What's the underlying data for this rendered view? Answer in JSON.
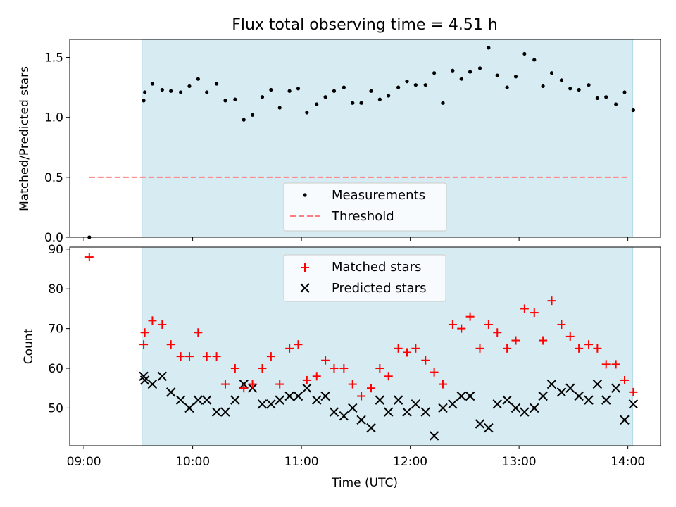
{
  "chart_data": [
    {
      "type": "scatter",
      "title": "Flux total observing time = 4.51 h",
      "xlabel": "",
      "ylabel": "Matched/Predicted stars",
      "xlim": [
        8.87,
        14.3
      ],
      "ylim": [
        0,
        1.65
      ],
      "yticks": [
        0.0,
        0.5,
        1.0,
        1.5
      ],
      "ytick_labels": [
        "0.0",
        "0.5",
        "1.0",
        "1.5"
      ],
      "shaded_span": [
        9.535,
        14.045
      ],
      "shade_color": "#add8e6",
      "legend": [
        "Measurements",
        "Threshold"
      ],
      "legend_position": "lower-center",
      "series": [
        {
          "name": "Measurements",
          "marker": "dot",
          "color": "#000000",
          "points": [
            [
              9.05,
              0.0
            ],
            [
              9.55,
              1.14
            ],
            [
              9.56,
              1.21
            ],
            [
              9.63,
              1.28
            ],
            [
              9.72,
              1.23
            ],
            [
              9.8,
              1.22
            ],
            [
              9.89,
              1.21
            ],
            [
              9.97,
              1.26
            ],
            [
              10.05,
              1.32
            ],
            [
              10.13,
              1.21
            ],
            [
              10.22,
              1.28
            ],
            [
              10.3,
              1.14
            ],
            [
              10.39,
              1.15
            ],
            [
              10.47,
              0.98
            ],
            [
              10.55,
              1.02
            ],
            [
              10.64,
              1.17
            ],
            [
              10.72,
              1.23
            ],
            [
              10.8,
              1.08
            ],
            [
              10.89,
              1.22
            ],
            [
              10.97,
              1.24
            ],
            [
              11.05,
              1.04
            ],
            [
              11.14,
              1.11
            ],
            [
              11.22,
              1.17
            ],
            [
              11.3,
              1.22
            ],
            [
              11.39,
              1.25
            ],
            [
              11.47,
              1.12
            ],
            [
              11.55,
              1.12
            ],
            [
              11.64,
              1.22
            ],
            [
              11.72,
              1.15
            ],
            [
              11.8,
              1.18
            ],
            [
              11.89,
              1.25
            ],
            [
              11.97,
              1.3
            ],
            [
              12.05,
              1.27
            ],
            [
              12.14,
              1.27
            ],
            [
              12.22,
              1.37
            ],
            [
              12.3,
              1.12
            ],
            [
              12.39,
              1.39
            ],
            [
              12.47,
              1.32
            ],
            [
              12.55,
              1.38
            ],
            [
              12.64,
              1.41
            ],
            [
              12.72,
              1.58
            ],
            [
              12.8,
              1.35
            ],
            [
              12.89,
              1.25
            ],
            [
              12.97,
              1.34
            ],
            [
              13.05,
              1.53
            ],
            [
              13.14,
              1.48
            ],
            [
              13.22,
              1.26
            ],
            [
              13.3,
              1.37
            ],
            [
              13.39,
              1.31
            ],
            [
              13.47,
              1.24
            ],
            [
              13.55,
              1.23
            ],
            [
              13.64,
              1.27
            ],
            [
              13.72,
              1.16
            ],
            [
              13.8,
              1.17
            ],
            [
              13.89,
              1.11
            ],
            [
              13.97,
              1.21
            ],
            [
              14.05,
              1.06
            ]
          ]
        },
        {
          "name": "Threshold",
          "style": "dashed",
          "color": "#ff7f7f",
          "x": [
            9.05,
            14.02
          ],
          "y": [
            0.5,
            0.5
          ]
        }
      ]
    },
    {
      "type": "scatter",
      "title": "",
      "xlabel": "Time (UTC)",
      "ylabel": "Count",
      "xlim": [
        8.87,
        14.3
      ],
      "ylim": [
        40.5,
        90.5
      ],
      "xticks": [
        9,
        10,
        11,
        12,
        13,
        14
      ],
      "xtick_labels": [
        "09:00",
        "10:00",
        "11:00",
        "12:00",
        "13:00",
        "14:00"
      ],
      "yticks": [
        50,
        60,
        70,
        80,
        90
      ],
      "ytick_labels": [
        "50",
        "60",
        "70",
        "80",
        "90"
      ],
      "shaded_span": [
        9.535,
        14.045
      ],
      "shade_color": "#add8e6",
      "legend": [
        "Matched stars",
        "Predicted stars"
      ],
      "legend_position": "upper-center",
      "series": [
        {
          "name": "Matched stars",
          "marker": "plus",
          "color": "#ff0000",
          "points": [
            [
              9.05,
              88
            ],
            [
              9.55,
              66
            ],
            [
              9.56,
              69
            ],
            [
              9.63,
              72
            ],
            [
              9.72,
              71
            ],
            [
              9.8,
              66
            ],
            [
              9.89,
              63
            ],
            [
              9.97,
              63
            ],
            [
              10.05,
              69
            ],
            [
              10.13,
              63
            ],
            [
              10.22,
              63
            ],
            [
              10.3,
              56
            ],
            [
              10.39,
              60
            ],
            [
              10.47,
              55
            ],
            [
              10.55,
              56
            ],
            [
              10.64,
              60
            ],
            [
              10.72,
              63
            ],
            [
              10.8,
              56
            ],
            [
              10.89,
              65
            ],
            [
              10.97,
              66
            ],
            [
              11.05,
              57
            ],
            [
              11.14,
              58
            ],
            [
              11.22,
              62
            ],
            [
              11.3,
              60
            ],
            [
              11.39,
              60
            ],
            [
              11.47,
              56
            ],
            [
              11.55,
              53
            ],
            [
              11.64,
              55
            ],
            [
              11.72,
              60
            ],
            [
              11.8,
              58
            ],
            [
              11.89,
              65
            ],
            [
              11.97,
              64
            ],
            [
              12.05,
              65
            ],
            [
              12.14,
              62
            ],
            [
              12.22,
              59
            ],
            [
              12.3,
              56
            ],
            [
              12.39,
              71
            ],
            [
              12.47,
              70
            ],
            [
              12.55,
              73
            ],
            [
              12.64,
              65
            ],
            [
              12.72,
              71
            ],
            [
              12.8,
              69
            ],
            [
              12.89,
              65
            ],
            [
              12.97,
              67
            ],
            [
              13.05,
              75
            ],
            [
              13.14,
              74
            ],
            [
              13.22,
              67
            ],
            [
              13.3,
              77
            ],
            [
              13.39,
              71
            ],
            [
              13.47,
              68
            ],
            [
              13.55,
              65
            ],
            [
              13.64,
              66
            ],
            [
              13.72,
              65
            ],
            [
              13.8,
              61
            ],
            [
              13.89,
              61
            ],
            [
              13.97,
              57
            ],
            [
              14.05,
              54
            ]
          ]
        },
        {
          "name": "Predicted stars",
          "marker": "x",
          "color": "#000000",
          "points": [
            [
              9.55,
              58
            ],
            [
              9.56,
              57
            ],
            [
              9.63,
              56
            ],
            [
              9.72,
              58
            ],
            [
              9.8,
              54
            ],
            [
              9.89,
              52
            ],
            [
              9.97,
              50
            ],
            [
              10.05,
              52
            ],
            [
              10.13,
              52
            ],
            [
              10.22,
              49
            ],
            [
              10.3,
              49
            ],
            [
              10.39,
              52
            ],
            [
              10.47,
              56
            ],
            [
              10.55,
              55
            ],
            [
              10.64,
              51
            ],
            [
              10.72,
              51
            ],
            [
              10.8,
              52
            ],
            [
              10.89,
              53
            ],
            [
              10.97,
              53
            ],
            [
              11.05,
              55
            ],
            [
              11.14,
              52
            ],
            [
              11.22,
              53
            ],
            [
              11.3,
              49
            ],
            [
              11.39,
              48
            ],
            [
              11.47,
              50
            ],
            [
              11.55,
              47
            ],
            [
              11.64,
              45
            ],
            [
              11.72,
              52
            ],
            [
              11.8,
              49
            ],
            [
              11.89,
              52
            ],
            [
              11.97,
              49
            ],
            [
              12.05,
              51
            ],
            [
              12.14,
              49
            ],
            [
              12.22,
              43
            ],
            [
              12.3,
              50
            ],
            [
              12.39,
              51
            ],
            [
              12.47,
              53
            ],
            [
              12.55,
              53
            ],
            [
              12.64,
              46
            ],
            [
              12.72,
              45
            ],
            [
              12.8,
              51
            ],
            [
              12.89,
              52
            ],
            [
              12.97,
              50
            ],
            [
              13.05,
              49
            ],
            [
              13.14,
              50
            ],
            [
              13.22,
              53
            ],
            [
              13.3,
              56
            ],
            [
              13.39,
              54
            ],
            [
              13.47,
              55
            ],
            [
              13.55,
              53
            ],
            [
              13.64,
              52
            ],
            [
              13.72,
              56
            ],
            [
              13.8,
              52
            ],
            [
              13.89,
              55
            ],
            [
              13.97,
              47
            ],
            [
              14.05,
              51
            ]
          ]
        }
      ]
    }
  ]
}
